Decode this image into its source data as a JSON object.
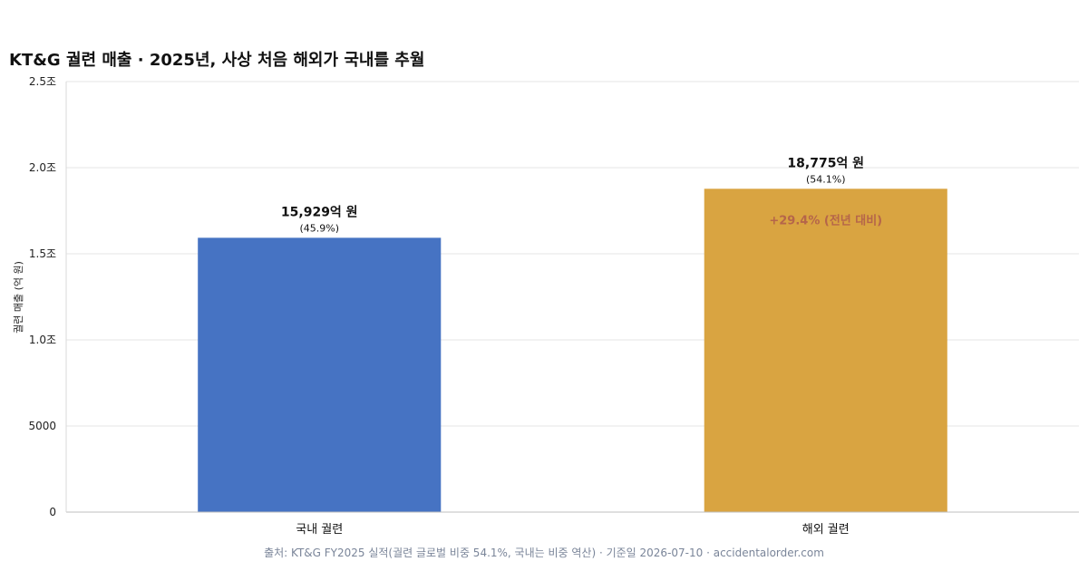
{
  "chart_data": {
    "type": "bar",
    "title": "KT&G 궐련 매출 · 2025년, 사상 처음 해외가 국내를 추월",
    "ylabel": "궐련 매출 (억 원)",
    "xlabel": "",
    "ylim": [
      0,
      25000
    ],
    "y_ticks": [
      {
        "value": 0,
        "label": "0"
      },
      {
        "value": 5000,
        "label": "5000"
      },
      {
        "value": 10000,
        "label": "1.0조"
      },
      {
        "value": 15000,
        "label": "1.5조"
      },
      {
        "value": 20000,
        "label": "2.0조"
      },
      {
        "value": 25000,
        "label": "2.5조"
      }
    ],
    "grid": true,
    "categories": [
      "국내 궐련",
      "해외 궐련"
    ],
    "values": [
      15929,
      18775
    ],
    "value_labels": [
      "15,929억 원",
      "18,775억 원"
    ],
    "share_labels": [
      "(45.9%)",
      "(54.1%)"
    ],
    "colors": [
      "#4673c3",
      "#d9a441"
    ],
    "annotation": {
      "category": "해외 궐련",
      "text": "+29.4% (전년 대비)",
      "color": "#b5654a"
    },
    "source": "출처: KT&G FY2025 실적(궐련 글로벌 비중 54.1%, 국내는 비중 역산) · 기준일 2026-07-10 · accidentalorder.com"
  }
}
